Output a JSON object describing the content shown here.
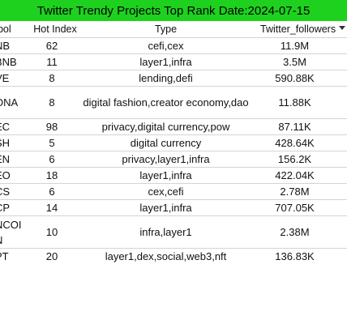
{
  "title": "Twitter Trendy Projects Top Rank Date:2024-07-15",
  "columns": {
    "symbol": "nbol",
    "hot_index": "Hot Index",
    "type": "Type",
    "twitter_followers": "Twitter_followers"
  },
  "rows": [
    {
      "symbol": "NB",
      "hot_index": "62",
      "type": "cefi,cex",
      "followers": "11.9M"
    },
    {
      "symbol": "BNB",
      "hot_index": "11",
      "type": "layer1,infra",
      "followers": "3.5M"
    },
    {
      "symbol": "VE",
      "hot_index": "8",
      "type": "lending,defi",
      "followers": "590.88K"
    },
    {
      "symbol": "ONA",
      "hot_index": "8",
      "type": "digital fashion,creator economy,dao",
      "followers": "11.88K"
    },
    {
      "symbol": "EC",
      "hot_index": "98",
      "type": "privacy,digital currency,pow",
      "followers": "87.11K"
    },
    {
      "symbol": "SH",
      "hot_index": "5",
      "type": "digital currency",
      "followers": "428.64K"
    },
    {
      "symbol": "EN",
      "hot_index": "6",
      "type": "privacy,layer1,infra",
      "followers": "156.2K"
    },
    {
      "symbol": "EO",
      "hot_index": "18",
      "type": "layer1,infra",
      "followers": "422.04K"
    },
    {
      "symbol": "CS",
      "hot_index": "6",
      "type": "cex,cefi",
      "followers": "2.78M"
    },
    {
      "symbol": "CP",
      "hot_index": "14",
      "type": "layer1,infra",
      "followers": "707.05K"
    },
    {
      "symbol": "NCOI N",
      "hot_index": "10",
      "type": "infra,layer1",
      "followers": "2.38M"
    },
    {
      "symbol": "PT",
      "hot_index": "20",
      "type": "layer1,dex,social,web3,nft",
      "followers": "136.83K"
    }
  ],
  "colors": {
    "title_bg": "#1fd11f",
    "row_border": "#d4d4d4"
  },
  "icons": {
    "sort": "chevron-down-icon"
  }
}
